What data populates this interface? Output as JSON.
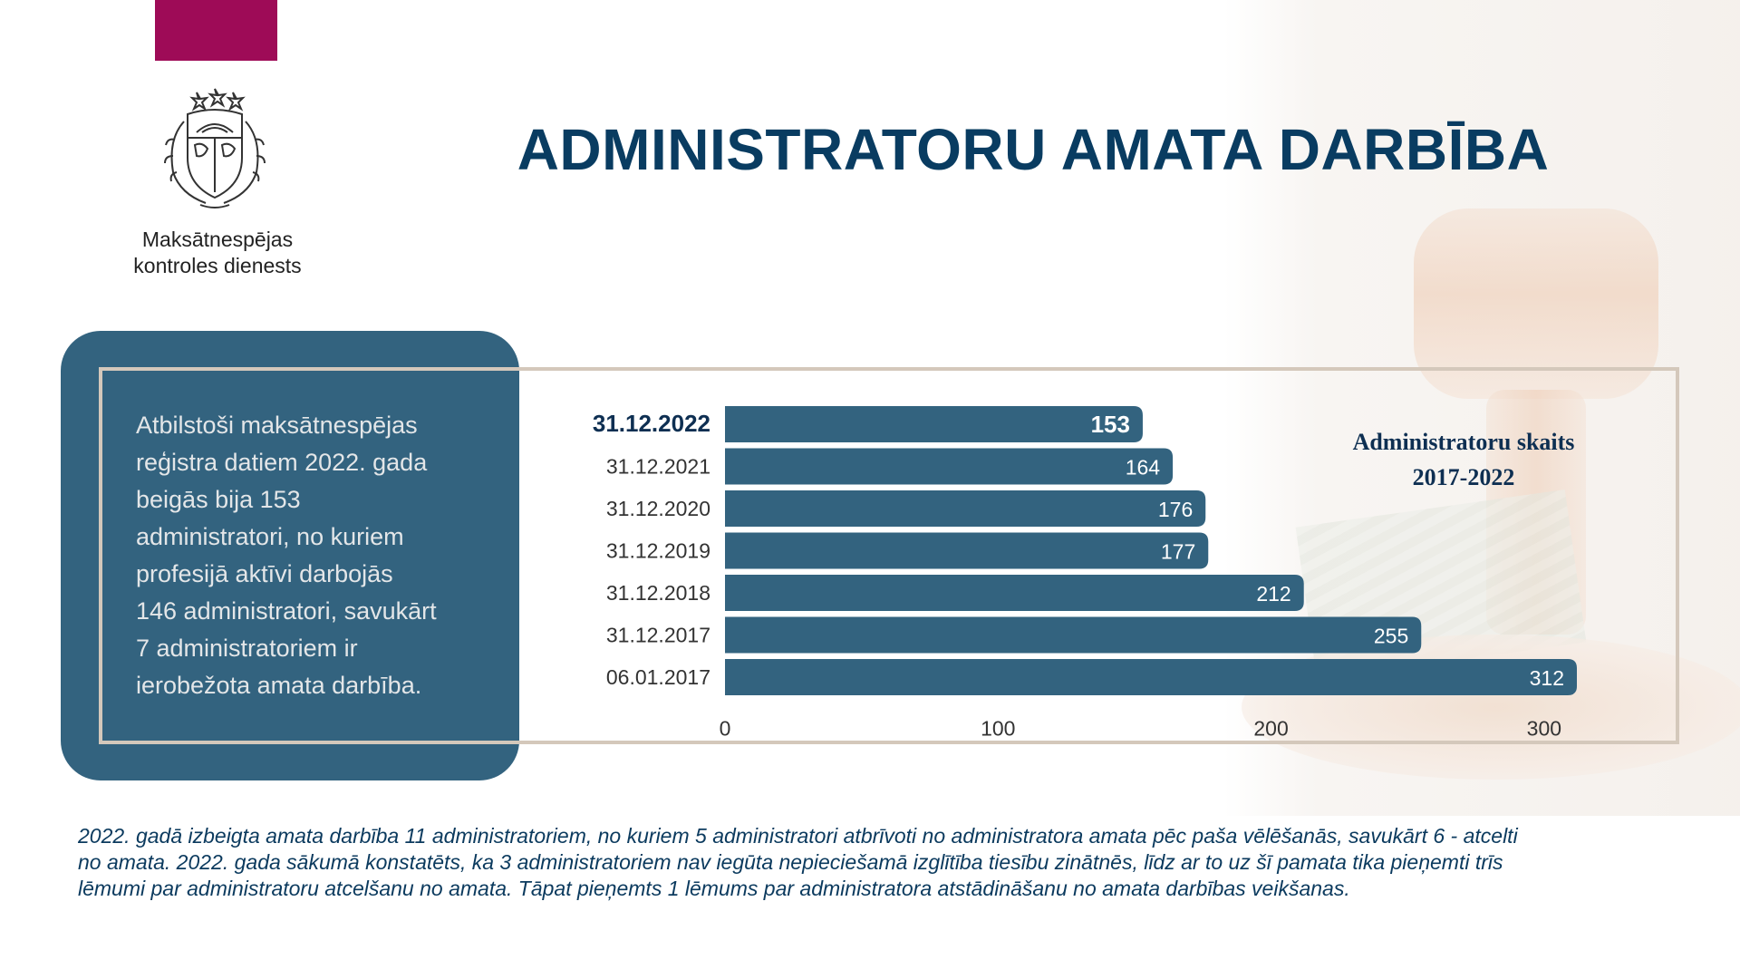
{
  "header": {
    "title": "ADMINISTRATORU AMATA DARBĪBA",
    "org_line1": "Maksātnespējas",
    "org_line2": "kontroles dienests"
  },
  "colors": {
    "accent": "#9e0b57",
    "primary_dark": "#093c61",
    "bar": "#33637f",
    "frame": "#d4c8bb"
  },
  "summary": {
    "lines": [
      "Atbilstoši maksātnespējas",
      "reģistra datiem 2022. gada",
      "beigās bija 153",
      " administratori, no kuriem",
      "profesijā aktīvi darbojās",
      "146 administratori, savukārt",
      "7 administratoriem ir",
      "ierobežota amata darbība."
    ]
  },
  "chart_data": {
    "type": "bar",
    "orientation": "horizontal",
    "title_lines": [
      "Administratoru skaits",
      "2017-2022"
    ],
    "categories": [
      "31.12.2022",
      "31.12.2021",
      "31.12.2020",
      "31.12.2019",
      "31.12.2018",
      "31.12.2017",
      "06.01.2017"
    ],
    "values": [
      153,
      164,
      176,
      177,
      212,
      255,
      312
    ],
    "highlight_index": 0,
    "xlim": [
      0,
      312
    ],
    "xticks": [
      0,
      100,
      200,
      300
    ],
    "data_labels": true,
    "grid": false
  },
  "footnote": {
    "lines": [
      "2022. gadā izbeigta amata darbība 11 administratoriem, no kuriem 5 administratori atbrīvoti no administratora amata pēc paša vēlēšanās, savukārt 6 - atcelti",
      "no amata. 2022. gada sākumā konstatēts, ka 3 administratoriem nav iegūta nepieciešamā izglītība tiesību zinātnēs, līdz ar to uz šī pamata tika pieņemti trīs",
      "lēmumi par administratoru atcelšanu no amata. Tāpat pieņemts 1 lēmums par administratora atstādināšanu no amata darbības veikšanas."
    ]
  }
}
